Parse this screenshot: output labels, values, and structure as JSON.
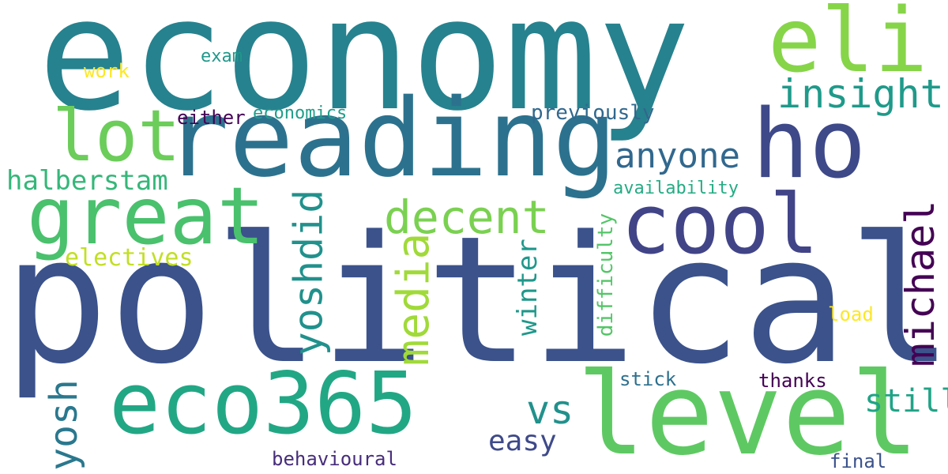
{
  "background": "#ffffff",
  "words": [
    {
      "id": "economy",
      "text": "economy",
      "color": "#26828e"
    },
    {
      "id": "political",
      "text": "political",
      "color": "#3b528b"
    },
    {
      "id": "reading",
      "text": "reading",
      "color": "#2c728e"
    },
    {
      "id": "eco365",
      "text": "eco365",
      "color": "#22a785"
    },
    {
      "id": "level",
      "text": "level",
      "color": "#5ec962"
    },
    {
      "id": "eli",
      "text": "eli",
      "color": "#86d549"
    },
    {
      "id": "ho",
      "text": "ho",
      "color": "#3e4989"
    },
    {
      "id": "lot",
      "text": "lot",
      "color": "#6ccd5a"
    },
    {
      "id": "great",
      "text": "great",
      "color": "#4ac16d"
    },
    {
      "id": "cool",
      "text": "cool",
      "color": "#414487"
    },
    {
      "id": "decent",
      "text": "decent",
      "color": "#7ad151"
    },
    {
      "id": "insight",
      "text": "insight",
      "color": "#1f9a8a"
    },
    {
      "id": "anyone",
      "text": "anyone",
      "color": "#31688e"
    },
    {
      "id": "halberstam",
      "text": "halberstam",
      "color": "#35b779"
    },
    {
      "id": "electives",
      "text": "electives",
      "color": "#c2df23"
    },
    {
      "id": "vs",
      "text": "vs",
      "color": "#21918c"
    },
    {
      "id": "easy",
      "text": "easy",
      "color": "#3e4a89"
    },
    {
      "id": "still",
      "text": "still",
      "color": "#20a486"
    },
    {
      "id": "economics",
      "text": "economics",
      "color": "#1f9e89"
    },
    {
      "id": "either",
      "text": "either",
      "color": "#440154"
    },
    {
      "id": "exam",
      "text": "exam",
      "color": "#1f988b"
    },
    {
      "id": "work",
      "text": "work",
      "color": "#fde725"
    },
    {
      "id": "previously",
      "text": "previously",
      "color": "#31688e"
    },
    {
      "id": "availability",
      "text": "availability",
      "color": "#25ab82"
    },
    {
      "id": "load",
      "text": "load",
      "color": "#fde725"
    },
    {
      "id": "stick",
      "text": "stick",
      "color": "#2d708e"
    },
    {
      "id": "thanks",
      "text": "thanks",
      "color": "#440154"
    },
    {
      "id": "behavioural",
      "text": "behavioural",
      "color": "#472d7b"
    },
    {
      "id": "final",
      "text": "final",
      "color": "#3b528b"
    },
    {
      "id": "yoshdid",
      "text": "yoshdid",
      "color": "#21918c"
    },
    {
      "id": "media",
      "text": "media",
      "color": "#a0da39"
    },
    {
      "id": "winter",
      "text": "winter",
      "color": "#1f988b"
    },
    {
      "id": "difficulty",
      "text": "difficulty",
      "color": "#54c568"
    },
    {
      "id": "michael",
      "text": "michael",
      "color": "#440154"
    },
    {
      "id": "yosh",
      "text": "yosh",
      "color": "#2a788e"
    }
  ]
}
